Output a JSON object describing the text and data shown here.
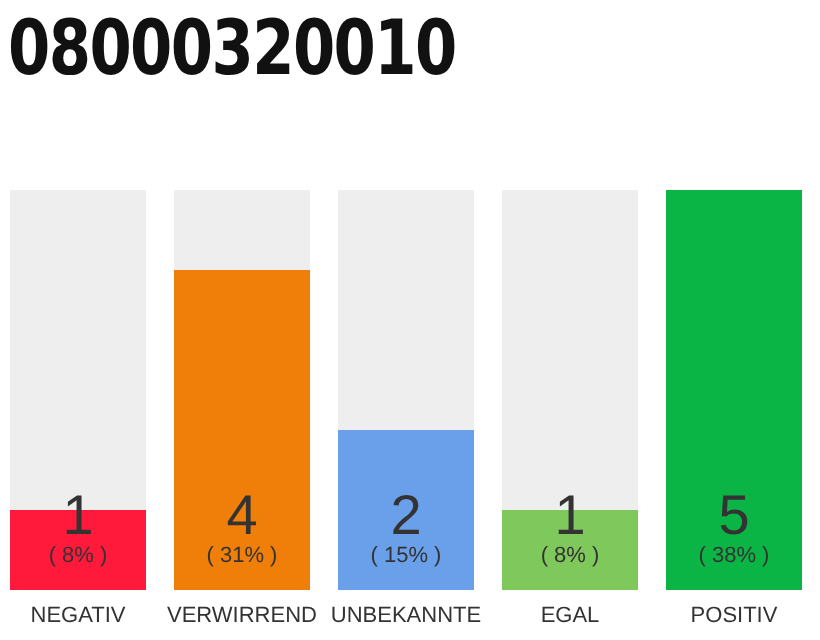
{
  "chart_data": {
    "type": "bar",
    "title": "08000320010",
    "categories": [
      "NEGATIV",
      "VERWIRREND",
      "UNBEKANNTE",
      "EGAL",
      "POSITIV"
    ],
    "values": [
      1,
      4,
      2,
      1,
      5
    ],
    "colors": [
      "#ff1a3c",
      "#f07f09",
      "#6aa0ea",
      "#7ec85c",
      "#0bb545"
    ],
    "ylim": [
      0,
      5
    ],
    "data_labels": true,
    "tick_labels": "x",
    "annotations": [
      "( 8% )",
      "( 31% )",
      "( 15% )",
      "( 8% )",
      "( 38% )"
    ]
  }
}
